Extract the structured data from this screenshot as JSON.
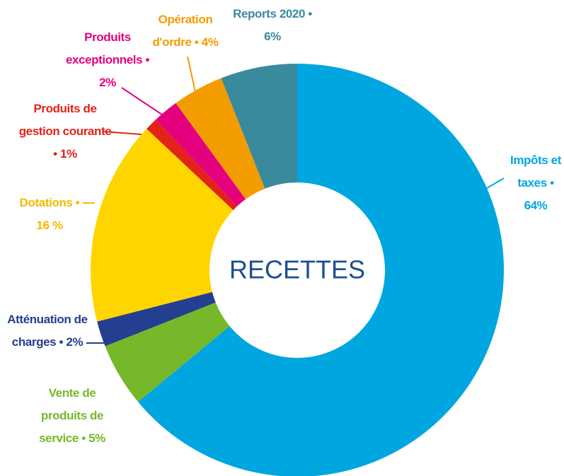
{
  "chart_data": {
    "type": "donut",
    "title": "RECETTES",
    "categories": [
      "Impôts et taxes",
      "Vente de produits de service",
      "Atténuation de charges",
      "Dotations",
      "Produits de gestion courante",
      "Produits exceptionnels",
      "Opération d'ordre",
      "Reports 2020"
    ],
    "values": [
      64,
      5,
      2,
      16,
      1,
      2,
      4,
      6
    ],
    "value_labels": [
      "• 64%",
      "• 5%",
      "• 2%",
      "• 16 %",
      "• 1%",
      "• 2%",
      "• 4%",
      "• 6%"
    ],
    "colors": [
      "#00a6e0",
      "#76b82a",
      "#243e90",
      "#ffd500",
      "#e2231a",
      "#e5007e",
      "#f39c00",
      "#3a8a9e"
    ]
  }
}
